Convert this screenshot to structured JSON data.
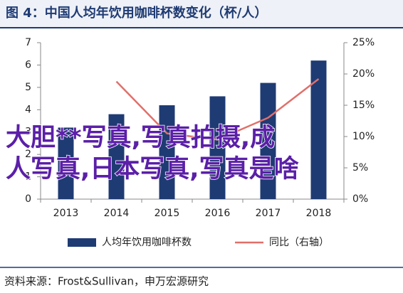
{
  "chart_data": {
    "type": "bar_line",
    "title": "图 4：中国人均年饮用咖啡杯数变化（杯/人）",
    "source": "资料来源：Frost&Sullivan，申万宏源研究",
    "categories": [
      "2013",
      "2014",
      "2015",
      "2016",
      "2017",
      "2018"
    ],
    "series": [
      {
        "name": "人均年饮用咖啡杯数",
        "type": "bar",
        "color": "#1f3b73",
        "values": [
          3.2,
          3.8,
          4.2,
          4.6,
          5.2,
          6.2
        ]
      },
      {
        "name": "同比（右轴）",
        "type": "line",
        "axis": "y2",
        "color": "#e0706a",
        "values": [
          null,
          18.8,
          10.5,
          9.5,
          13.0,
          19.2
        ]
      }
    ],
    "ylim": [
      0,
      7
    ],
    "yticks": [
      0,
      1,
      2,
      3,
      4,
      5,
      6,
      7
    ],
    "y2lim": [
      0,
      25
    ],
    "y2ticks": [
      {
        "value": 0,
        "label": "0%"
      },
      {
        "value": 5,
        "label": "5%"
      },
      {
        "value": 10,
        "label": "10%"
      },
      {
        "value": 15,
        "label": "15%"
      },
      {
        "value": 20,
        "label": "20%"
      },
      {
        "value": 25,
        "label": "25%"
      }
    ],
    "overlay_text": [
      "大胆**写真,写真拍摄,成",
      "人写真,日本写真,写真是啥"
    ]
  }
}
